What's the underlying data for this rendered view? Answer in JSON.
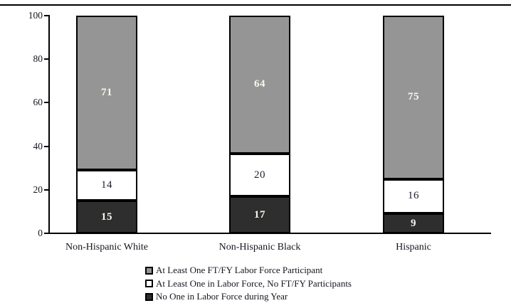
{
  "figure": {
    "background": "#ffffff",
    "top_rule_color": "#000000"
  },
  "chart_data": {
    "type": "bar",
    "stacked": true,
    "title": "",
    "xlabel": "",
    "ylabel": "",
    "categories": [
      "Non-Hispanic White",
      "Non-Hispanic Black",
      "Hispanic"
    ],
    "series": [
      {
        "name": "No One in Labor Force during Year",
        "values": [
          15,
          17,
          9
        ],
        "color": "#2e2e2e",
        "label_color": "#faf6ee",
        "label_bold": true
      },
      {
        "name": "At Least One in Labor Force, No FT/FY Participants",
        "values": [
          14,
          20,
          16
        ],
        "color": "#ffffff",
        "label_color": "#20202e",
        "label_bold": false
      },
      {
        "name": "At Least One FT/FY Labor Force Participant",
        "values": [
          71,
          64,
          75
        ],
        "color": "#959595",
        "label_color": "#faf6ee",
        "label_bold": true
      }
    ],
    "y_ticks": [
      0,
      20,
      40,
      60,
      80,
      100
    ],
    "ylim": [
      0,
      100
    ],
    "grid": false,
    "bar_outline_color": "#000000",
    "legend_position": "bottom-left",
    "legend": [
      {
        "label": "At Least One FT/FY Labor Force Participant",
        "color": "#959595"
      },
      {
        "label": "At Least One in Labor Force, No FT/FY Participants",
        "color": "#ffffff"
      },
      {
        "label": "No One in Labor Force during Year",
        "color": "#2e2e2e"
      }
    ]
  }
}
